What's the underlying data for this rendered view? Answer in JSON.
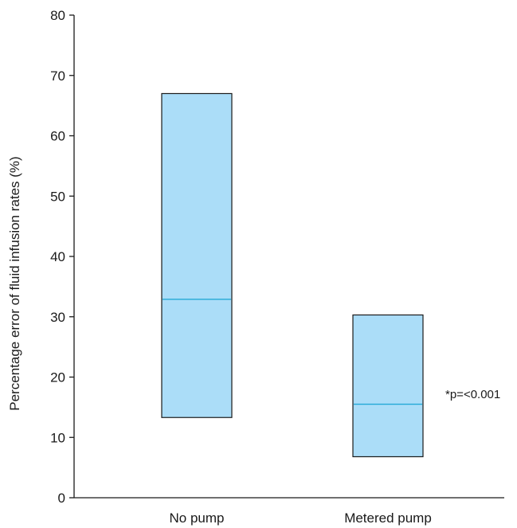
{
  "chart_data": {
    "type": "box",
    "title": "",
    "xlabel": "",
    "ylabel": "Percentage error of fluid infusion rates (%)",
    "ylim": [
      0,
      80
    ],
    "yticks": [
      0,
      10,
      20,
      30,
      40,
      50,
      60,
      70,
      80
    ],
    "grid": false,
    "categories": [
      "No pump",
      "Metered pump"
    ],
    "boxes": [
      {
        "category": "No pump",
        "low": 13.3,
        "median": 32.9,
        "high": 67.0
      },
      {
        "category": "Metered pump",
        "low": 6.8,
        "median": 15.5,
        "high": 30.3
      }
    ],
    "annotation": "*p=<0.001",
    "colors": {
      "box_fill": "#abddf8",
      "box_stroke": "#1a1a1a",
      "median_line": "#23a9d6",
      "axis": "#1a1a1a"
    }
  }
}
